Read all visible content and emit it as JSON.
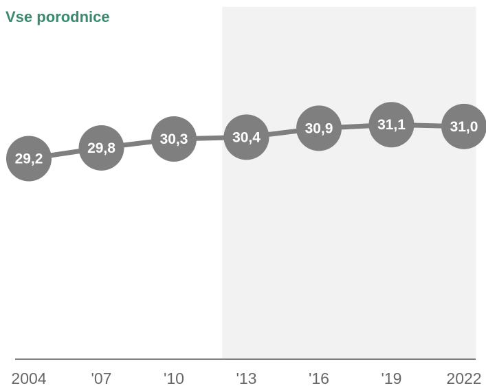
{
  "colors": {
    "title": "#3b8a6e",
    "line": "#7f7f7f",
    "marker": "#7f7f7f",
    "marker_text": "#ffffff",
    "axis": "#7f7f7f",
    "tick": "#666666",
    "highlight_band": "#f2f2f2"
  },
  "chart_data": {
    "type": "line",
    "title": "Vse porodnice",
    "categories": [
      "2004",
      "'07",
      "'10",
      "'13",
      "'16",
      "'19",
      "2022"
    ],
    "x": [
      2004,
      2007,
      2010,
      2013,
      2016,
      2019,
      2022
    ],
    "values": [
      29.2,
      29.8,
      30.3,
      30.4,
      30.9,
      31.1,
      31.0
    ],
    "value_labels": [
      "29,2",
      "29,8",
      "30,3",
      "30,4",
      "30,9",
      "31,1",
      "31,0"
    ],
    "xlabel": "",
    "ylabel": "",
    "ylim": [
      18,
      34
    ],
    "highlight_range": [
      2012,
      2022.5
    ],
    "grid": false,
    "legend": "none"
  }
}
